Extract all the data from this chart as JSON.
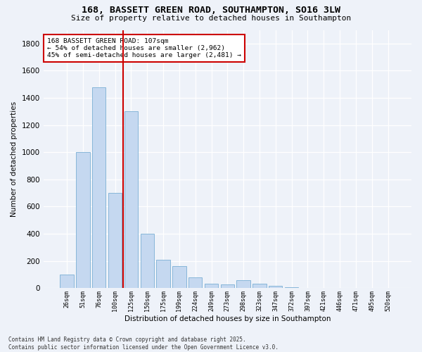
{
  "title_line1": "168, BASSETT GREEN ROAD, SOUTHAMPTON, SO16 3LW",
  "title_line2": "Size of property relative to detached houses in Southampton",
  "xlabel": "Distribution of detached houses by size in Southampton",
  "ylabel": "Number of detached properties",
  "categories": [
    "26sqm",
    "51sqm",
    "76sqm",
    "100sqm",
    "125sqm",
    "150sqm",
    "175sqm",
    "199sqm",
    "224sqm",
    "249sqm",
    "273sqm",
    "298sqm",
    "323sqm",
    "347sqm",
    "372sqm",
    "397sqm",
    "421sqm",
    "446sqm",
    "471sqm",
    "495sqm",
    "520sqm"
  ],
  "values": [
    100,
    1000,
    1480,
    700,
    1300,
    400,
    210,
    160,
    80,
    30,
    25,
    60,
    30,
    15,
    5,
    0,
    0,
    0,
    0,
    0,
    0
  ],
  "bar_color": "#c5d8f0",
  "bar_edge_color": "#7aafd4",
  "vline_color": "#cc0000",
  "annotation_text": "168 BASSETT GREEN ROAD: 107sqm\n← 54% of detached houses are smaller (2,962)\n45% of semi-detached houses are larger (2,481) →",
  "annotation_box_color": "#cc0000",
  "background_color": "#eef2f9",
  "grid_color": "#ffffff",
  "footer_line1": "Contains HM Land Registry data © Crown copyright and database right 2025.",
  "footer_line2": "Contains public sector information licensed under the Open Government Licence v3.0.",
  "ylim": [
    0,
    1900
  ],
  "yticks": [
    0,
    200,
    400,
    600,
    800,
    1000,
    1200,
    1400,
    1600,
    1800
  ],
  "vline_xindex": 3.5,
  "fig_width": 6.0,
  "fig_height": 5.0
}
